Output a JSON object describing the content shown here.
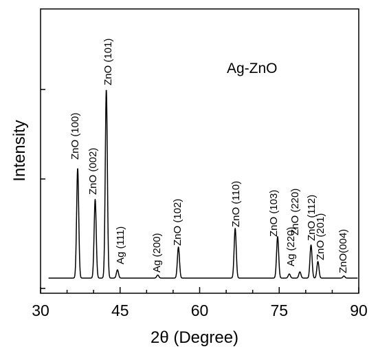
{
  "chart_data": {
    "type": "line",
    "title": "Ag-ZnO",
    "xlabel": "2θ (Degree)",
    "ylabel": "Intensity",
    "xlim": [
      30,
      90
    ],
    "ylim": [
      0,
      100
    ],
    "xticks": [
      30,
      45,
      60,
      75,
      90
    ],
    "yticks_labeled": false,
    "grid": false,
    "baseline": 2,
    "peaks": [
      {
        "x": 37.0,
        "y": 55,
        "label": "ZnO (100)"
      },
      {
        "x": 40.3,
        "y": 40,
        "label": "ZnO (002)"
      },
      {
        "x": 42.4,
        "y": 93,
        "label": "ZnO (101)"
      },
      {
        "x": 44.5,
        "y": 6,
        "label": "Ag (111)"
      },
      {
        "x": 52.1,
        "y": 3.5,
        "label": "Ag (200)"
      },
      {
        "x": 56.0,
        "y": 17,
        "label": "ZnO (102)"
      },
      {
        "x": 66.7,
        "y": 26,
        "label": "ZnO (110)"
      },
      {
        "x": 74.7,
        "y": 22,
        "label": "ZnO (103)"
      },
      {
        "x": 76.9,
        "y": 4,
        "label": "Ag (220)"
      },
      {
        "x": 78.9,
        "y": 5,
        "label": "ZnO (220)"
      },
      {
        "x": 81.0,
        "y": 18,
        "label": "ZnO (112)"
      },
      {
        "x": 82.3,
        "y": 10,
        "label": "ZnO (201)"
      },
      {
        "x": 87.2,
        "y": 3,
        "label": "ZnO(004)"
      }
    ]
  }
}
